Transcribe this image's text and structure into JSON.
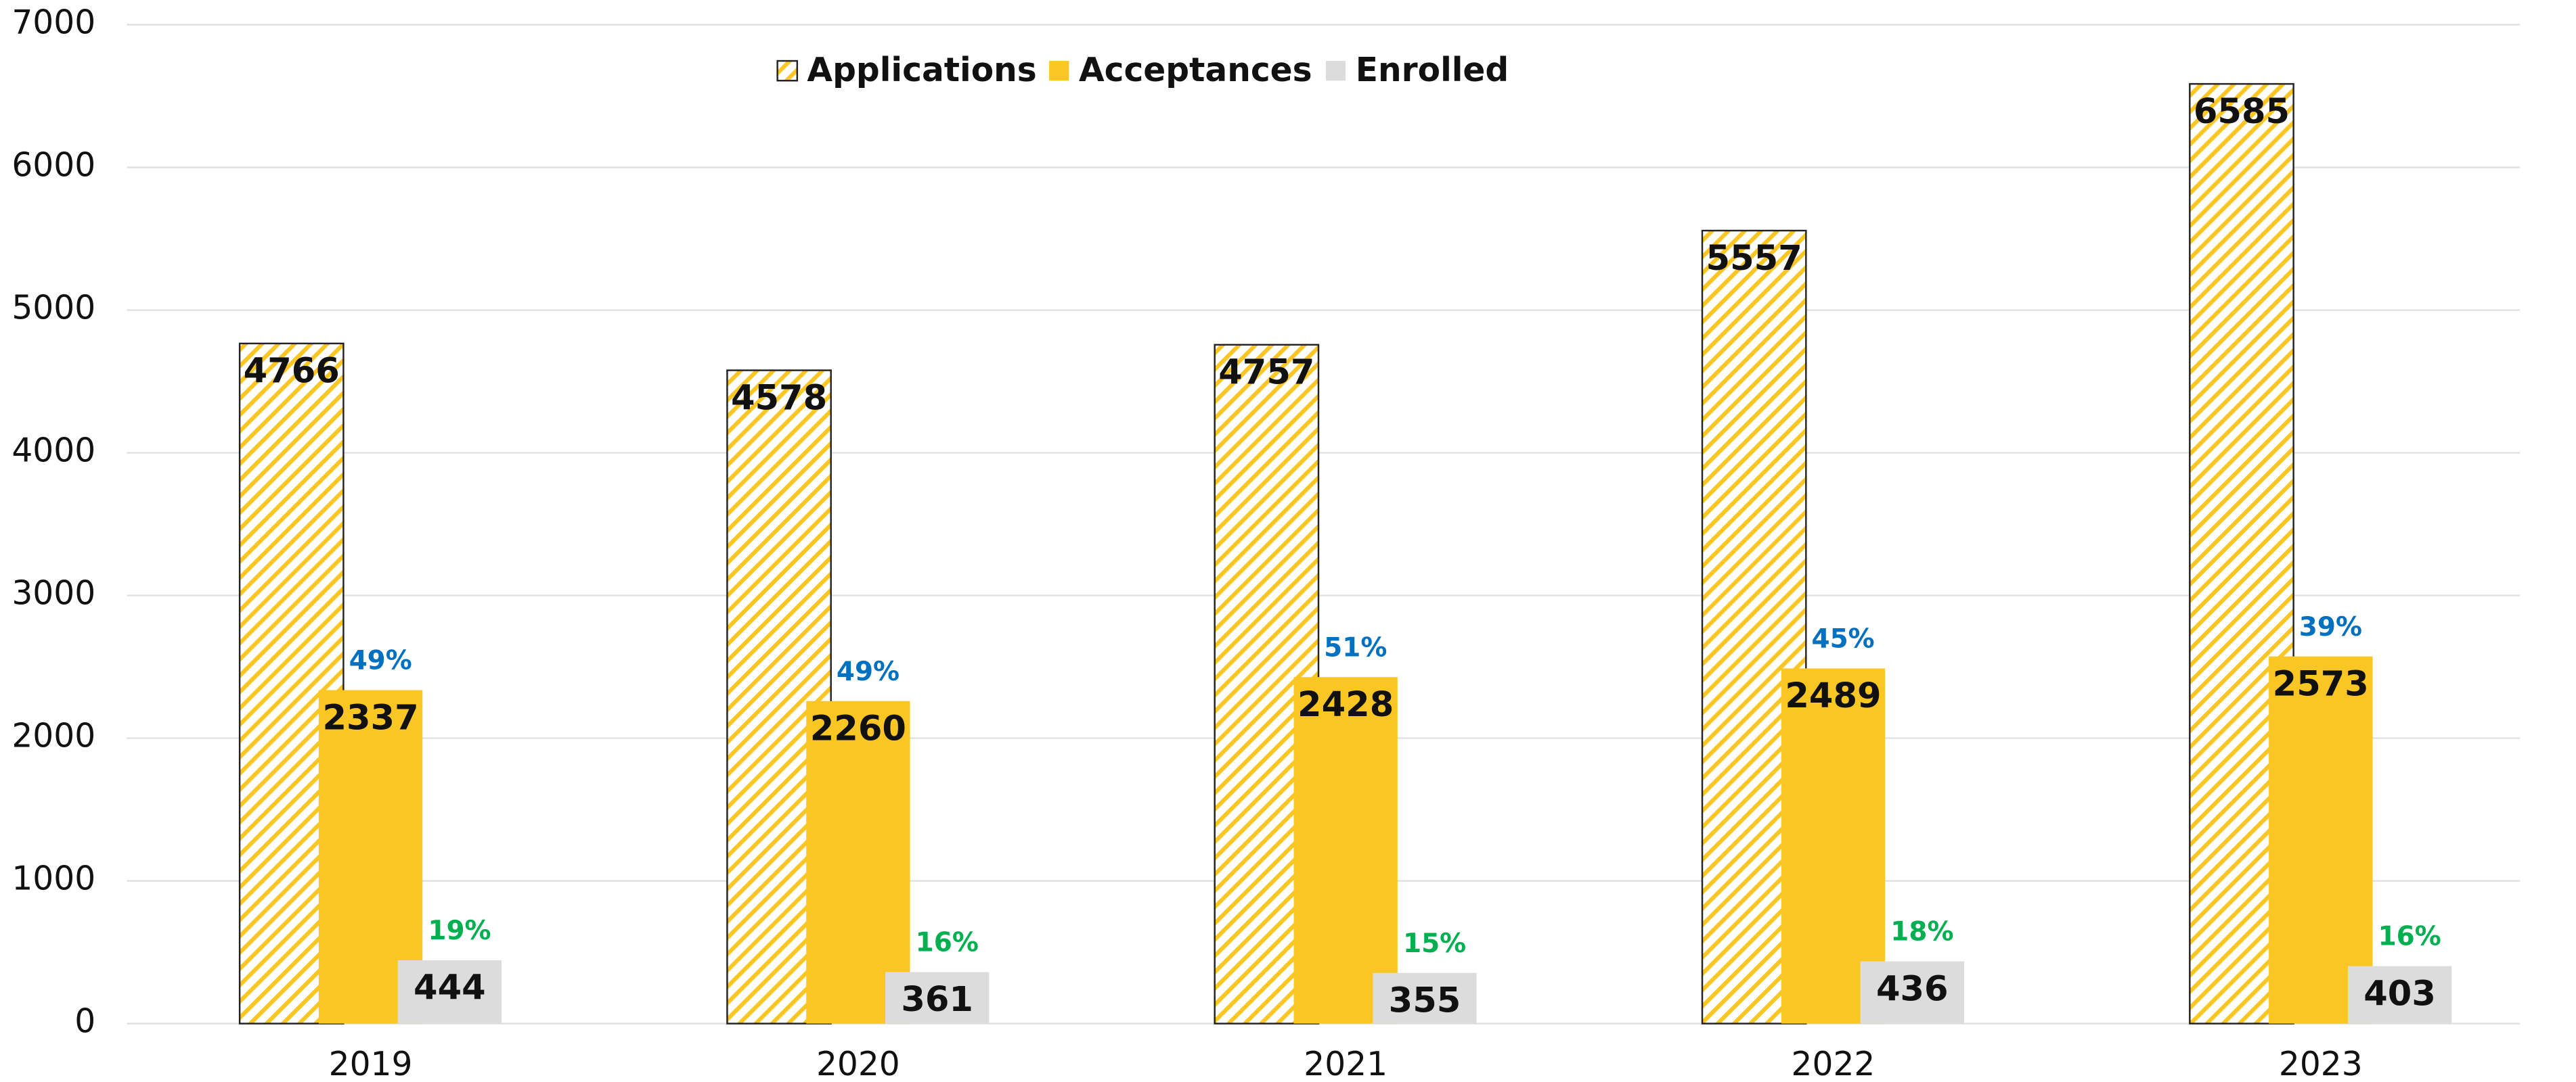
{
  "chart_data": {
    "type": "bar",
    "categories": [
      "2019",
      "2020",
      "2021",
      "2022",
      "2023"
    ],
    "series": [
      {
        "name": "Applications",
        "color": "#f9c623",
        "hatch": true,
        "values": [
          4766,
          4578,
          4757,
          5557,
          6585
        ]
      },
      {
        "name": "Acceptances",
        "color": "#f9c623",
        "values": [
          2337,
          2260,
          2428,
          2489,
          2573
        ],
        "rates": [
          49,
          49,
          51,
          45,
          39
        ],
        "rate_labels": [
          "49%",
          "49%",
          "51%",
          "45%",
          "39%"
        ],
        "rate_color": "#0070c0"
      },
      {
        "name": "Enrolled",
        "color": "#dcdcdc",
        "values": [
          444,
          361,
          355,
          436,
          403
        ],
        "rates": [
          19,
          16,
          15,
          18,
          16
        ],
        "rate_labels": [
          "19%",
          "16%",
          "15%",
          "18%",
          "16%"
        ],
        "rate_color": "#00b050"
      }
    ],
    "ylim": [
      0,
      7000
    ],
    "yticks": [
      0,
      1000,
      2000,
      3000,
      4000,
      5000,
      6000,
      7000
    ],
    "grid": true,
    "legend": "top"
  }
}
